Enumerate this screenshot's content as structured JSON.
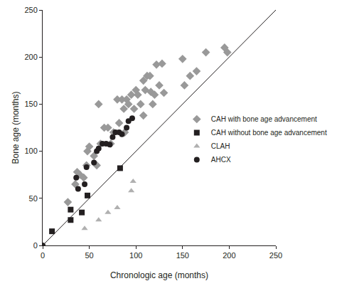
{
  "chart_data": {
    "type": "scatter",
    "x_label": "Chronologic age (months)",
    "y_label": "Bone age (months)",
    "xlim": [
      0,
      250
    ],
    "ylim": [
      0,
      250
    ],
    "xticks": [
      0,
      50,
      100,
      150,
      200,
      250
    ],
    "yticks": [
      0,
      50,
      100,
      150,
      200,
      250
    ],
    "grid": false,
    "legend": "right",
    "identity_line": {
      "x": [
        0,
        250
      ],
      "y": [
        0,
        250
      ],
      "color": "#231f20"
    },
    "series": [
      {
        "name": "CAH with bone age advancement",
        "color": "#999999",
        "marker": "diamond",
        "x": [
          27,
          35,
          37,
          40,
          44,
          47,
          48,
          50,
          55,
          58,
          60,
          62,
          66,
          70,
          73,
          76,
          80,
          82,
          85,
          87,
          88,
          90,
          92,
          95,
          98,
          100,
          102,
          105,
          108,
          108,
          110,
          112,
          115,
          116,
          118,
          120,
          122,
          125,
          128,
          130,
          150,
          152,
          158,
          165,
          175,
          195,
          198
        ],
        "values": [
          46,
          65,
          78,
          75,
          72,
          85,
          100,
          105,
          95,
          85,
          150,
          108,
          125,
          125,
          108,
          120,
          155,
          130,
          155,
          145,
          120,
          155,
          150,
          160,
          145,
          165,
          160,
          150,
          138,
          175,
          165,
          180,
          180,
          163,
          150,
          160,
          192,
          170,
          193,
          162,
          198,
          170,
          180,
          185,
          205,
          210,
          205
        ]
      },
      {
        "name": "CAH without bone age advancement",
        "color": "#231f20",
        "marker": "square",
        "x": [
          10,
          30,
          30,
          42,
          48,
          83
        ],
        "values": [
          15,
          27,
          38,
          35,
          53,
          82
        ]
      },
      {
        "name": "CLAH",
        "color": "#b0b0b0",
        "marker": "triangle-up",
        "x": [
          45,
          60,
          70,
          80,
          95,
          97
        ],
        "values": [
          18,
          27,
          35,
          40,
          58,
          68
        ]
      },
      {
        "name": "AHCX",
        "color": "#231f20",
        "marker": "circle",
        "x": [
          0,
          36,
          38,
          45,
          47,
          55,
          58,
          60,
          64,
          68,
          72,
          75,
          78,
          82,
          85,
          90,
          92,
          96
        ],
        "values": [
          0,
          72,
          60,
          65,
          83,
          88,
          100,
          103,
          108,
          108,
          107,
          115,
          120,
          120,
          118,
          125,
          132,
          135
        ]
      }
    ]
  }
}
